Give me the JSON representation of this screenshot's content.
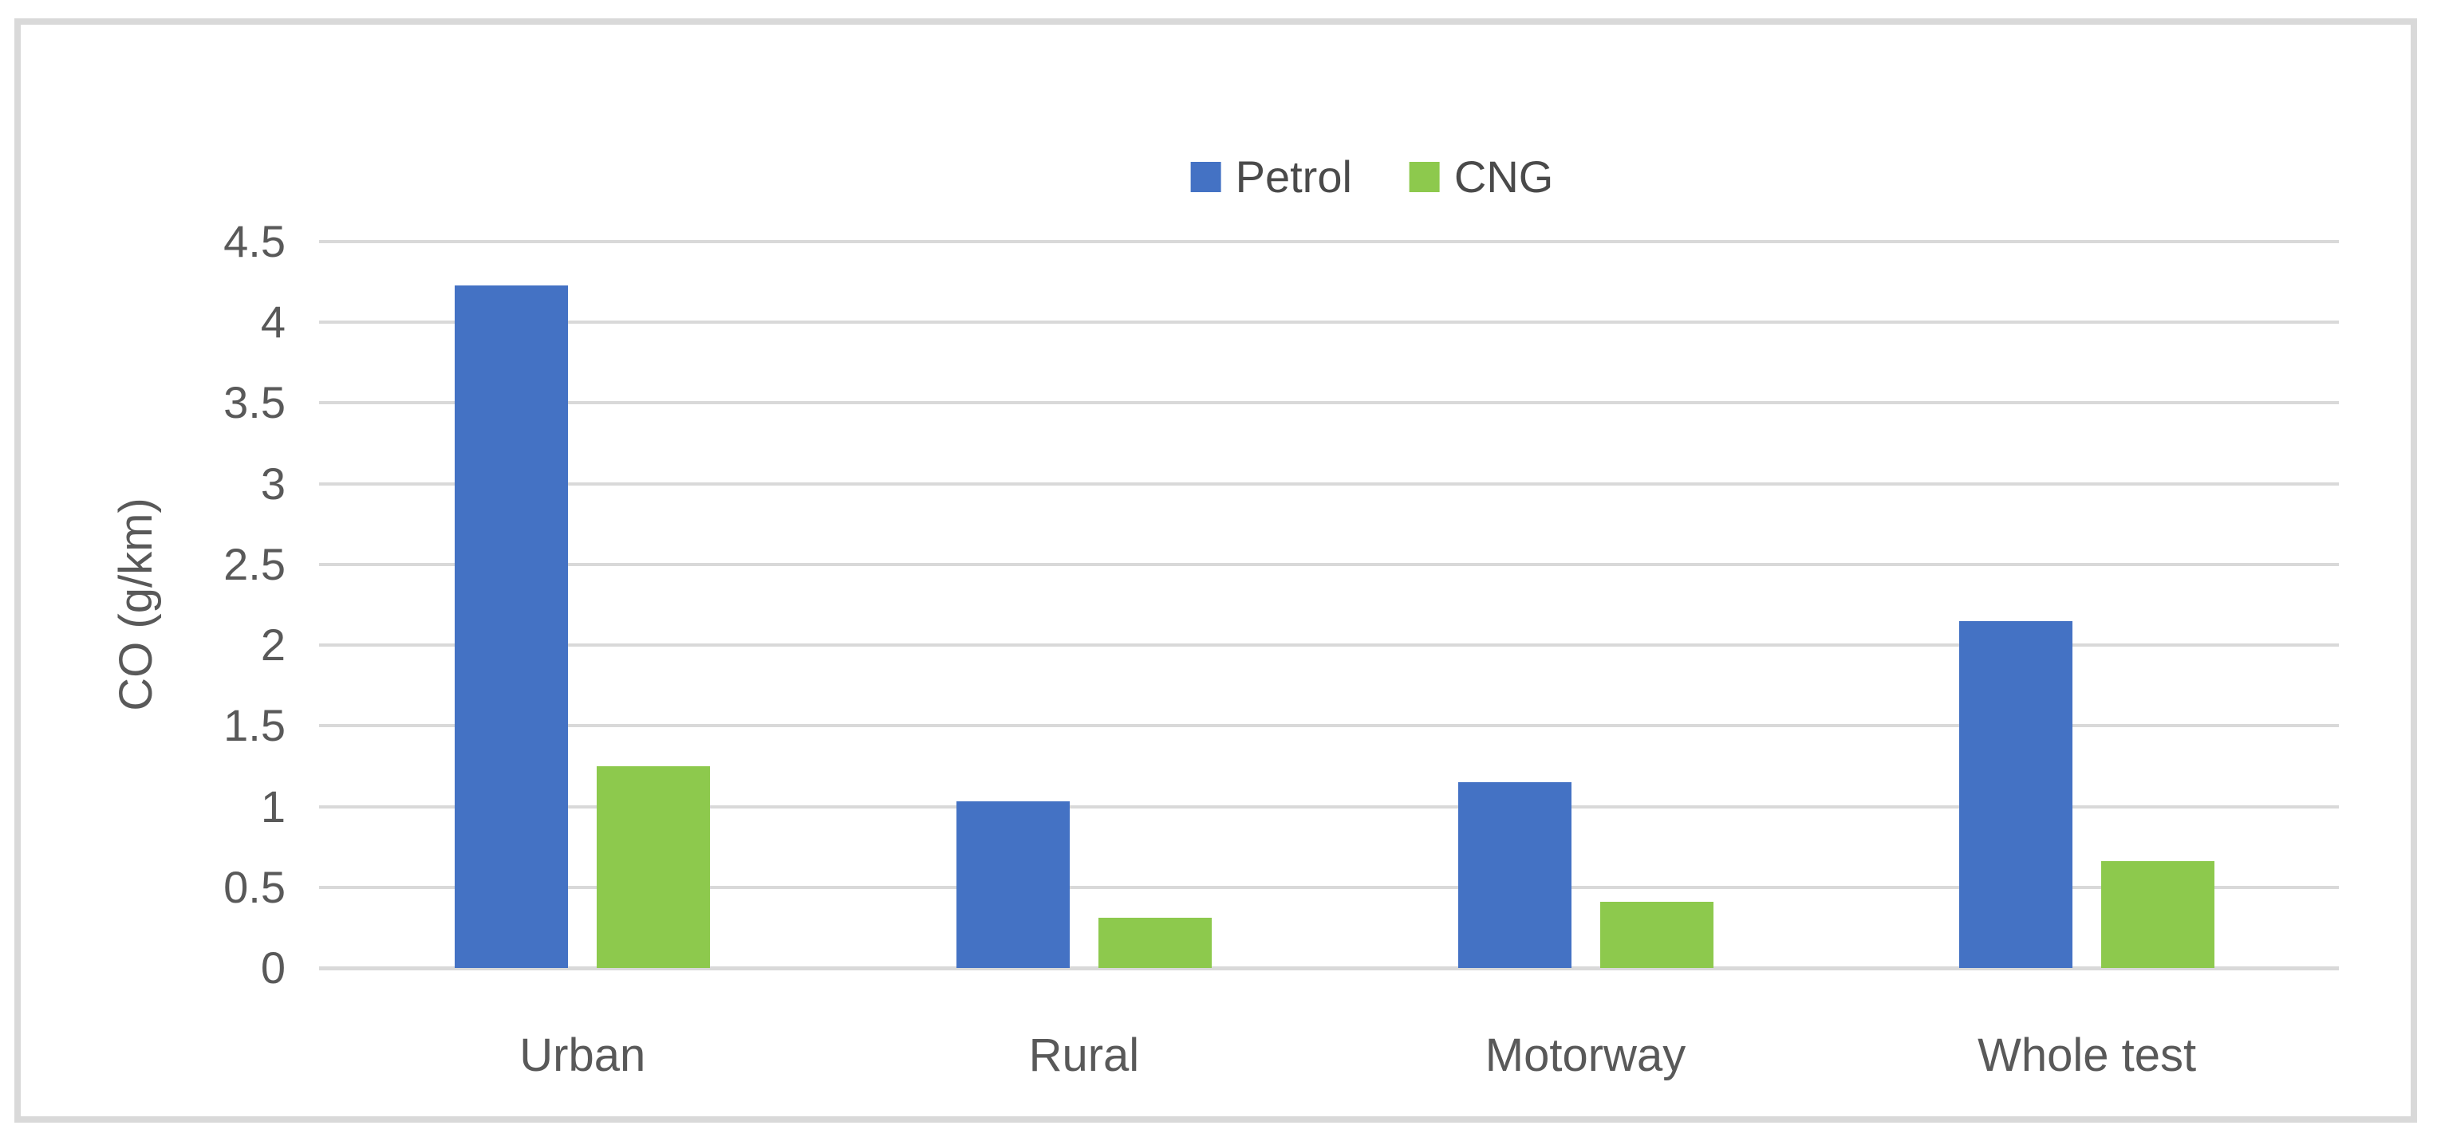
{
  "chart_data": {
    "type": "bar",
    "title": "",
    "xlabel": "",
    "ylabel": "CO (g/km)",
    "categories": [
      "Urban",
      "Rural",
      "Motorway",
      "Whole test"
    ],
    "series": [
      {
        "name": "Petrol",
        "color": "#4472C4",
        "values": [
          4.23,
          1.03,
          1.15,
          2.15
        ]
      },
      {
        "name": "CNG",
        "color": "#8DC94D",
        "values": [
          1.25,
          0.31,
          0.41,
          0.66
        ]
      }
    ],
    "ylim": [
      0,
      4.5
    ],
    "ytick_step": 0.5,
    "yticks": [
      0,
      0.5,
      1,
      1.5,
      2,
      2.5,
      3,
      3.5,
      4,
      4.5
    ],
    "ytick_labels": [
      "0",
      "0.5",
      "1",
      "1.5",
      "2",
      "2.5",
      "3",
      "3.5",
      "4",
      "4.5"
    ],
    "grid": "horizontal",
    "legend_position": "top-center",
    "colors": {
      "gridline": "#D9D9D9",
      "frame_border": "#D9D9D9",
      "axis_text": "#595959",
      "background": "#FFFFFF"
    }
  }
}
